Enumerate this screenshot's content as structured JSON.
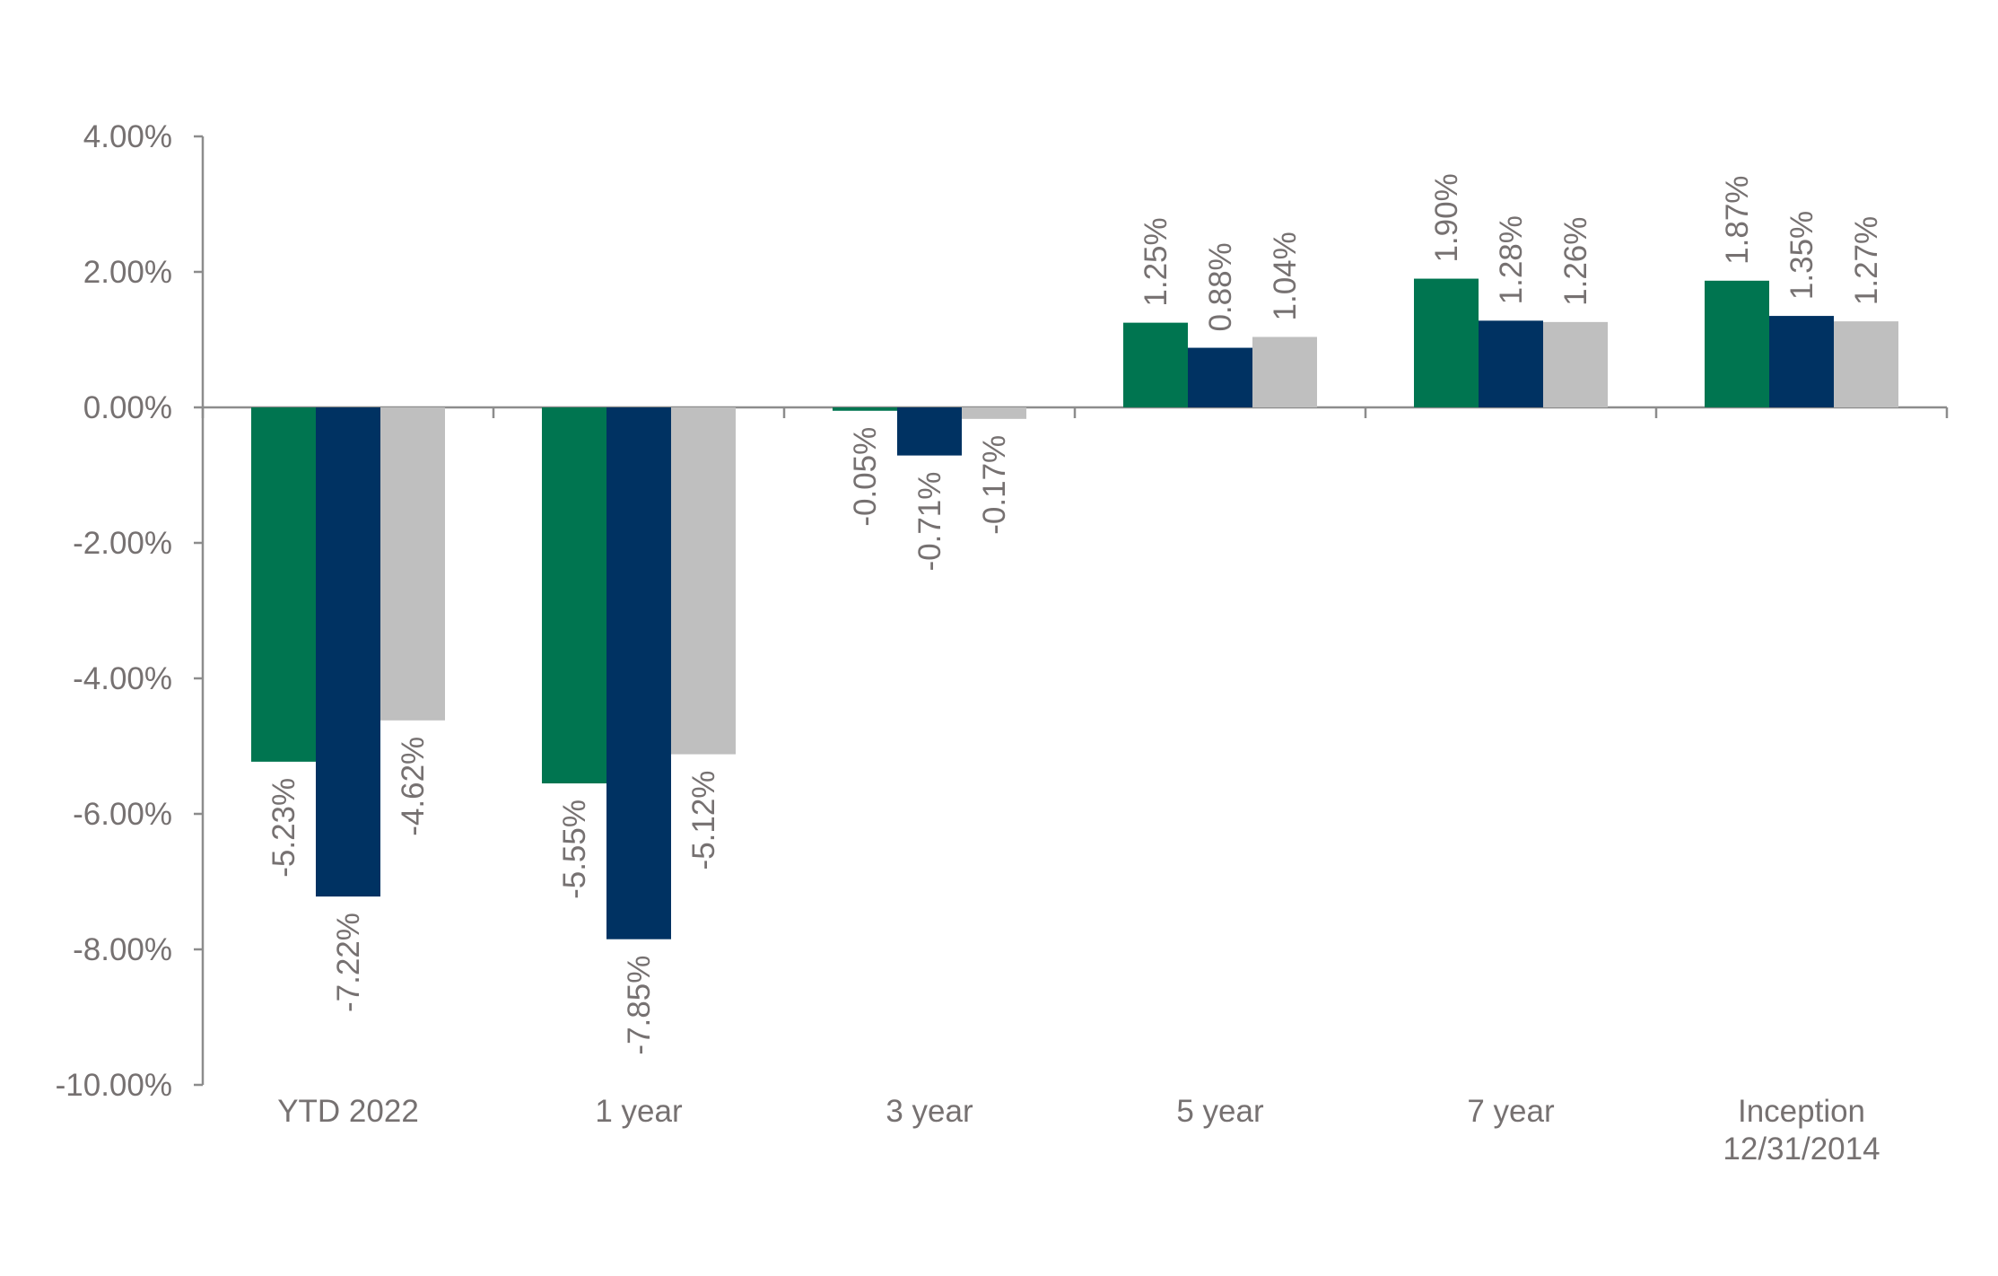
{
  "chart_data": {
    "type": "bar",
    "categories": [
      [
        "YTD 2022"
      ],
      [
        "1 year"
      ],
      [
        "3 year"
      ],
      [
        "5 year"
      ],
      [
        "7 year"
      ],
      [
        "Inception",
        "12/31/2014"
      ]
    ],
    "series": [
      {
        "color": "#007550",
        "values": [
          -5.23,
          -5.55,
          -0.05,
          1.25,
          1.9,
          1.87
        ],
        "labels": [
          "-5.23%",
          "-5.55%",
          "-0.05%",
          "1.25%",
          "1.90%",
          "1.87%"
        ]
      },
      {
        "color": "#003262",
        "values": [
          -7.22,
          -7.85,
          -0.71,
          0.88,
          1.28,
          1.35
        ],
        "labels": [
          "-7.22%",
          "-7.85%",
          "-0.71%",
          "0.88%",
          "1.28%",
          "1.35%"
        ]
      },
      {
        "color": "#bfbfbf",
        "values": [
          -4.62,
          -5.12,
          -0.17,
          1.04,
          1.26,
          1.27
        ],
        "labels": [
          "-4.62%",
          "-5.12%",
          "-0.17%",
          "1.04%",
          "1.26%",
          "1.27%"
        ]
      }
    ],
    "yticks": [
      4,
      2,
      0,
      -2,
      -4,
      -6,
      -8,
      -10
    ],
    "ytick_labels": [
      "4.00%",
      "2.00%",
      "0.00%",
      "-2.00%",
      "-4.00%",
      "-6.00%",
      "-8.00%",
      "-10.00%"
    ],
    "ylim": [
      -10,
      4
    ],
    "grid": false,
    "legend": "none"
  }
}
